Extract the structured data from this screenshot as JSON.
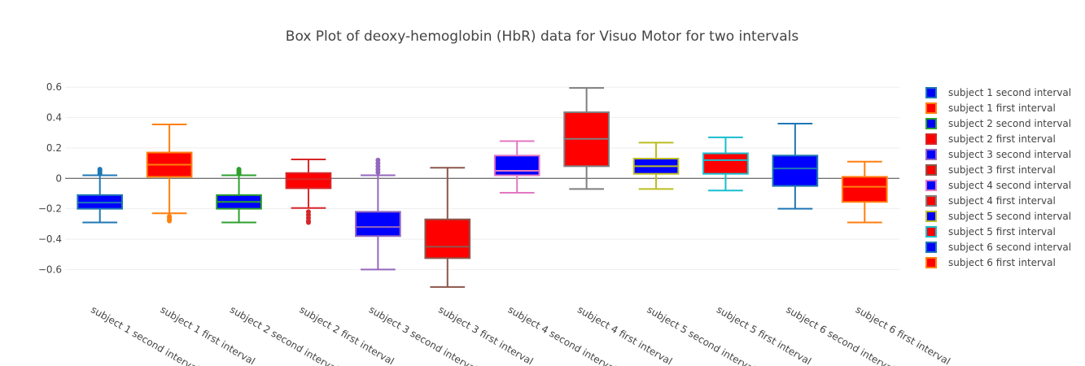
{
  "chart_data": {
    "type": "box",
    "title": "Box Plot of deoxy-hemoglobin (HbR) data for Visuo Motor for two intervals",
    "y_ticks": [
      -0.6,
      -0.4,
      -0.2,
      0,
      0.2,
      0.4,
      0.6
    ],
    "y_tick_labels": [
      "−0.6",
      "−0.4",
      "−0.2",
      "0",
      "0.2",
      "0.4",
      "0.6"
    ],
    "ylim": [
      -0.78,
      0.66
    ],
    "grid": true,
    "legend_position": "right",
    "series": [
      {
        "name": "subject 1 second interval",
        "min": -0.29,
        "q1": -0.2,
        "median": -0.16,
        "q3": -0.11,
        "max": 0.02,
        "outliers_high": [
          0.03,
          0.04,
          0.05,
          0.06
        ],
        "outliers_low": [],
        "fill": "#0000ff",
        "line": "#1f77b4"
      },
      {
        "name": "subject 1 first interval",
        "min": -0.23,
        "q1": 0.01,
        "median": 0.09,
        "q3": 0.17,
        "max": 0.355,
        "outliers_high": [],
        "outliers_low": [
          -0.25,
          -0.26,
          -0.27,
          -0.28
        ],
        "fill": "#ff0000",
        "line": "#ff7f0e"
      },
      {
        "name": "subject 2 second interval",
        "min": -0.29,
        "q1": -0.2,
        "median": -0.155,
        "q3": -0.11,
        "max": 0.02,
        "outliers_high": [
          0.03,
          0.04,
          0.05,
          0.06
        ],
        "outliers_low": [],
        "fill": "#0000ff",
        "line": "#2ca02c"
      },
      {
        "name": "subject 2 first interval",
        "min": -0.195,
        "q1": -0.065,
        "median": -0.005,
        "q3": 0.035,
        "max": 0.125,
        "outliers_high": [],
        "outliers_low": [
          -0.22,
          -0.24,
          -0.26,
          -0.28,
          -0.29
        ],
        "fill": "#ff0000",
        "line": "#d62728"
      },
      {
        "name": "subject 3 second interval",
        "min": -0.6,
        "q1": -0.38,
        "median": -0.32,
        "q3": -0.22,
        "max": 0.02,
        "outliers_high": [
          0.04,
          0.06,
          0.08,
          0.1,
          0.12
        ],
        "outliers_low": [],
        "fill": "#0000ff",
        "line": "#9467bd"
      },
      {
        "name": "subject 3 first interval",
        "min": -0.715,
        "q1": -0.525,
        "median": -0.45,
        "q3": -0.27,
        "max": 0.07,
        "outliers_high": [],
        "outliers_low": [],
        "fill": "#ff0000",
        "line": "#8c564b"
      },
      {
        "name": "subject 4 second interval",
        "min": -0.095,
        "q1": 0.02,
        "median": 0.05,
        "q3": 0.15,
        "max": 0.245,
        "outliers_high": [],
        "outliers_low": [],
        "fill": "#0000ff",
        "line": "#e377c2"
      },
      {
        "name": "subject 4 first interval",
        "min": -0.07,
        "q1": 0.08,
        "median": 0.26,
        "q3": 0.435,
        "max": 0.595,
        "outliers_high": [],
        "outliers_low": [],
        "fill": "#ff0000",
        "line": "#7f7f7f"
      },
      {
        "name": "subject 5 second interval",
        "min": -0.07,
        "q1": 0.03,
        "median": 0.08,
        "q3": 0.13,
        "max": 0.235,
        "outliers_high": [],
        "outliers_low": [],
        "fill": "#0000ff",
        "line": "#bcbd22"
      },
      {
        "name": "subject 5 first interval",
        "min": -0.08,
        "q1": 0.03,
        "median": 0.12,
        "q3": 0.165,
        "max": 0.27,
        "outliers_high": [],
        "outliers_low": [],
        "fill": "#ff0000",
        "line": "#17becf"
      },
      {
        "name": "subject 6 second interval",
        "min": -0.2,
        "q1": -0.05,
        "median": 0.065,
        "q3": 0.15,
        "max": 0.36,
        "outliers_high": [],
        "outliers_low": [],
        "fill": "#0000ff",
        "line": "#1f77b4"
      },
      {
        "name": "subject 6 first interval",
        "min": -0.29,
        "q1": -0.155,
        "median": -0.055,
        "q3": 0.01,
        "max": 0.11,
        "outliers_high": [],
        "outliers_low": [],
        "fill": "#ff0000",
        "line": "#ff7f0e"
      }
    ]
  }
}
